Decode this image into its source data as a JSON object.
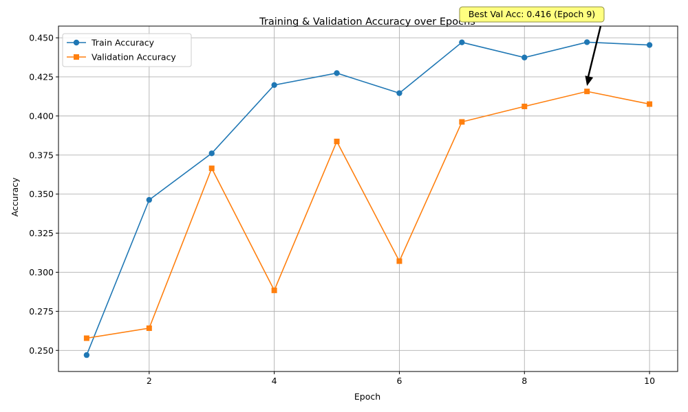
{
  "chart_data": {
    "type": "line",
    "title": "Training & Validation Accuracy over Epochs",
    "xlabel": "Epoch",
    "ylabel": "Accuracy",
    "xlim": [
      0.55,
      10.45
    ],
    "ylim": [
      0.2365,
      0.4575
    ],
    "xticks": [
      2,
      4,
      6,
      8,
      10
    ],
    "xtick_labels": [
      "2",
      "4",
      "6",
      "8",
      "10"
    ],
    "yticks": [
      0.25,
      0.275,
      0.3,
      0.325,
      0.35,
      0.375,
      0.4,
      0.425,
      0.45
    ],
    "ytick_labels": [
      "0.250",
      "0.275",
      "0.300",
      "0.325",
      "0.350",
      "0.375",
      "0.400",
      "0.425",
      "0.450"
    ],
    "grid": true,
    "legend_position": "top-left",
    "x": [
      1,
      2,
      3,
      4,
      5,
      6,
      7,
      8,
      9,
      10
    ],
    "series": [
      {
        "name": "Train Accuracy",
        "color": "#1f77b4",
        "marker": "circle",
        "values": [
          0.247,
          0.3463,
          0.3761,
          0.4198,
          0.4274,
          0.4146,
          0.4471,
          0.4374,
          0.4472,
          0.4454
        ]
      },
      {
        "name": "Validation Accuracy",
        "color": "#ff7f0e",
        "marker": "square",
        "values": [
          0.2578,
          0.2642,
          0.3665,
          0.2884,
          0.3837,
          0.3071,
          0.3962,
          0.4061,
          0.4157,
          0.4076
        ]
      }
    ],
    "annotation": {
      "text": "Best Val Acc: 0.416 (Epoch 9)",
      "x": 9,
      "y": 0.4157,
      "box_color": "#ffff80"
    }
  }
}
